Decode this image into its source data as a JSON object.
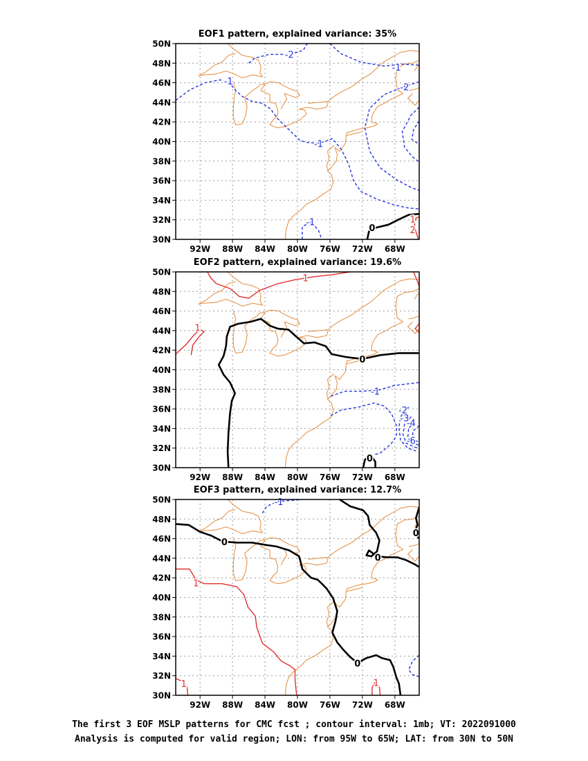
{
  "colors": {
    "coastline": "#e6944a",
    "negative_contour": "#2233dd",
    "positive_contour": "#e03030",
    "zero_contour": "#000000",
    "grid": "#999999"
  },
  "x_tick_labels": [
    "92W",
    "88W",
    "84W",
    "80W",
    "76W",
    "72W",
    "68W"
  ],
  "y_tick_labels": [
    "50N",
    "48N",
    "46N",
    "44N",
    "42N",
    "40N",
    "38N",
    "36N",
    "34N",
    "32N",
    "30N"
  ],
  "panels": [
    {
      "title": "EOF1 pattern, explained variance: 35%",
      "contour_labels": [
        {
          "text": "-2",
          "lon": -81.0,
          "lat": 48.9,
          "sign": "neg"
        },
        {
          "text": "-1",
          "lon": -88.5,
          "lat": 46.2,
          "sign": "neg"
        },
        {
          "text": "-1",
          "lon": -67.8,
          "lat": 47.6,
          "sign": "neg"
        },
        {
          "text": "-2",
          "lon": -66.8,
          "lat": 45.6,
          "sign": "neg"
        },
        {
          "text": "-1",
          "lon": -77.4,
          "lat": 39.8,
          "sign": "neg"
        },
        {
          "text": "-1",
          "lon": -78.4,
          "lat": 31.8,
          "sign": "neg"
        },
        {
          "text": "0",
          "lon": -70.8,
          "lat": 31.2,
          "sign": "zero"
        },
        {
          "text": "1",
          "lon": -65.8,
          "lat": 32.1,
          "sign": "pos"
        },
        {
          "text": "2",
          "lon": -65.8,
          "lat": 31.0,
          "sign": "pos"
        }
      ]
    },
    {
      "title": "EOF2 pattern, explained variance: 19.6%",
      "contour_labels": [
        {
          "text": "1",
          "lon": -79.0,
          "lat": 49.4,
          "sign": "pos"
        },
        {
          "text": "1",
          "lon": -92.3,
          "lat": 44.3,
          "sign": "pos"
        },
        {
          "text": "0",
          "lon": -72.0,
          "lat": 41.1,
          "sign": "zero"
        },
        {
          "text": "-1",
          "lon": -70.4,
          "lat": 37.8,
          "sign": "neg"
        },
        {
          "text": "-2",
          "lon": -67.0,
          "lat": 35.9,
          "sign": "neg"
        },
        {
          "text": "-3",
          "lon": -66.8,
          "lat": 35.1,
          "sign": "neg"
        },
        {
          "text": "-4",
          "lon": -66.0,
          "lat": 34.6,
          "sign": "neg"
        },
        {
          "text": "-6",
          "lon": -66.0,
          "lat": 32.8,
          "sign": "neg"
        },
        {
          "text": "0",
          "lon": -71.1,
          "lat": 31.0,
          "sign": "zero"
        }
      ]
    },
    {
      "title": "EOF3 pattern, explained variance: 12.7%",
      "contour_labels": [
        {
          "text": "-1",
          "lon": -82.3,
          "lat": 49.8,
          "sign": "neg"
        },
        {
          "text": "0",
          "lon": -89.0,
          "lat": 45.7,
          "sign": "zero"
        },
        {
          "text": "0",
          "lon": -70.1,
          "lat": 44.1,
          "sign": "zero"
        },
        {
          "text": "0",
          "lon": -65.4,
          "lat": 46.6,
          "sign": "zero"
        },
        {
          "text": "1",
          "lon": -92.5,
          "lat": 41.5,
          "sign": "pos"
        },
        {
          "text": "0",
          "lon": -72.6,
          "lat": 33.3,
          "sign": "zero"
        },
        {
          "text": "1",
          "lon": -94.0,
          "lat": 31.2,
          "sign": "pos"
        },
        {
          "text": "1",
          "lon": -70.3,
          "lat": 31.3,
          "sign": "pos"
        }
      ]
    }
  ],
  "caption_lines": [
    "The first 3 EOF MSLP patterns for CMC fcst ; contour interval: 1mb; VT: 2022091000",
    "Analysis is computed for valid region; LON: from 95W to 65W; LAT: from 30N to 50N"
  ]
}
